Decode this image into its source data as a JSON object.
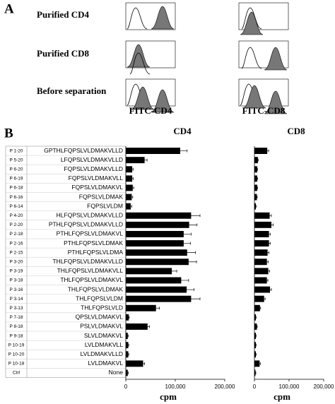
{
  "panel_a": {
    "label": "A",
    "rows": [
      "Purified CD4",
      "Purified CD8",
      "Before separation"
    ],
    "axis_labels": [
      "FITC-CD4",
      "FITC-CD8"
    ]
  },
  "panel_b_label": "B",
  "chart_data": [
    {
      "type": "hbar",
      "title": "CD4",
      "xlabel": "cpm",
      "groups": [
        "P 1-20",
        "P 5-20",
        "P 6-20",
        "P 6-19",
        "P 6-18",
        "P 6-16",
        "P 6-14",
        "P 4-20",
        "P 2-20",
        "P 2-18",
        "P 2-16",
        "P 2-15",
        "P 3-20",
        "P 3-19",
        "P 3-18",
        "P 3-16",
        "P 3-14",
        "P 3-13",
        "P 7-18",
        "P 8-18",
        "P 9-18",
        "P 10-19",
        "P 10-20",
        "P 10-18",
        "Ctrl"
      ],
      "categories": [
        "GPTHLFQPSLVLDMAKVLLD",
        "LFQPSLVLDMAKVLLD",
        "FQPSLVLDMAKVLLD",
        "FQPSLVLDMAKVLL",
        "FQPSLVLDMAKVL",
        "FQPSLVLDMAK",
        "FQPSLVLDM",
        "HLFQPSLVLDMAKVLLD",
        "PTHLFQPSLVLDMAKVLLD",
        "PTHLFQPSLVLDMAKVL",
        "PTHLFQPSLVLDMAK",
        "PTHLFQPSLVLDMA",
        "THLFQPSLVLDMAKVLLD",
        "THLFQPSLVLDMAKVLL",
        "THLFQPSLVLDMAKVL",
        "THLFQPSLVLDMAK",
        "THLFQPSLVLDM",
        "THLFQPSLVLD",
        "QPSLVLDMAKVL",
        "PSLVLDMAKVL",
        "SLVLDMAKVL",
        "LVLDMAKVLL",
        "LVLDMAKVLLD",
        "LVLDMAKVL",
        "None"
      ],
      "values": [
        110000,
        38000,
        13000,
        13000,
        14000,
        12000,
        10000,
        132000,
        128000,
        117000,
        117000,
        124000,
        127000,
        93000,
        112000,
        123000,
        132000,
        61000,
        6000,
        44000,
        4000,
        5000,
        5000,
        35000,
        4000
      ],
      "errors": [
        14000,
        5000,
        2000,
        2000,
        2000,
        2000,
        2000,
        18000,
        16000,
        15000,
        14000,
        17000,
        16000,
        10000,
        15000,
        15000,
        18000,
        7000,
        1000,
        4000,
        1000,
        1000,
        1000,
        3000,
        1000
      ],
      "color": "#000000",
      "xlim": [
        0,
        200000
      ],
      "xticks": [
        0,
        {
          "value": 100000,
          "label": "100,000"
        },
        {
          "value": 200000,
          "label": "200,000"
        }
      ]
    },
    {
      "type": "hbar",
      "title": "CD8",
      "xlabel": "cpm",
      "values": [
        37000,
        10000,
        8000,
        8000,
        8000,
        7000,
        4000,
        44000,
        49000,
        42000,
        42000,
        38000,
        36000,
        40000,
        36000,
        45000,
        28000,
        16000,
        4000,
        7000,
        4000,
        4000,
        4000,
        15000,
        3000
      ],
      "errors": [
        4000,
        1000,
        1000,
        1000,
        1000,
        1000,
        1000,
        5000,
        5000,
        4000,
        4000,
        4000,
        4000,
        4000,
        3000,
        4000,
        3000,
        2000,
        1000,
        1000,
        1000,
        1000,
        1000,
        2000,
        1000
      ],
      "color": "#000000",
      "xlim": [
        0,
        200000
      ],
      "xticks": [
        0,
        {
          "value": 100000,
          "label": "100,000"
        },
        {
          "value": 200000,
          "label": "200,000"
        }
      ]
    }
  ]
}
